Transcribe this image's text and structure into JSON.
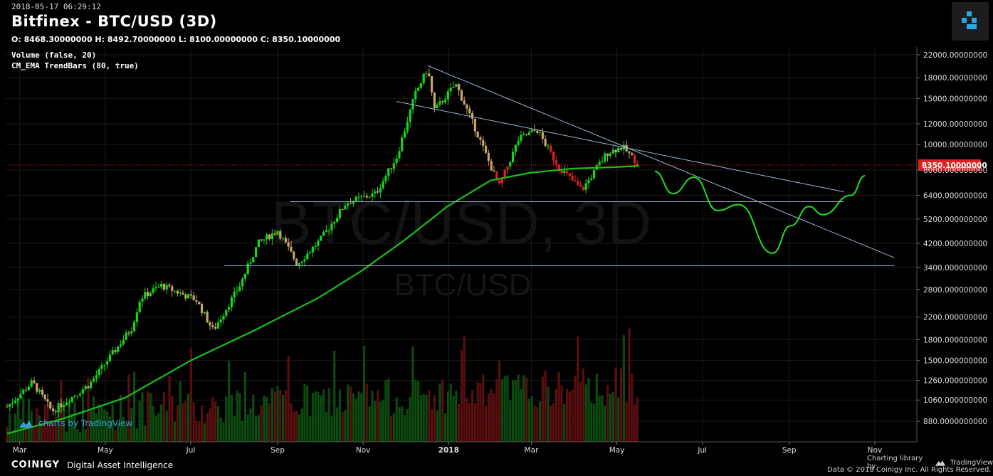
{
  "header": {
    "timestamp": "2018-05-17 06:29:12",
    "title": "Bitfinex - BTC/USD (3D)",
    "ohlc": "O: 8468.30000000 H: 8492.70000000 L: 8100.00000000 C: 8350.10000000",
    "indicators": [
      "Volume (false, 20)",
      "CM_EMA TrendBars (80, true)"
    ]
  },
  "watermark": {
    "main": "BTC/USD, 3D",
    "sub": "BTC/USD",
    "tv_text": "charts by TradingView"
  },
  "footer": {
    "brand": "COINIGY",
    "tagline": "Digital Asset Intelligence",
    "charting_lib": "Charting library by",
    "tv_name": "TradingView",
    "copyright": "Data © 2018 Coinigy Inc. All Rights Reserved."
  },
  "colors": {
    "up": "#18d61a",
    "down": "#c7a469",
    "red": "#e02020",
    "ema": "#18c018",
    "trend": "#9fb6d6",
    "volume_up": "#0c4a10",
    "volume_down": "#5a0e10"
  },
  "chart_data": {
    "type": "candlestick",
    "y_scale": "log",
    "y_ticks": [
      "22000.00000000",
      "18000.00000000",
      "15000.00000000",
      "12000.00000000",
      "10000.00000000",
      "8000.000000000",
      "6400.000000000",
      "5200.000000000",
      "4200.000000000",
      "3400.000000000",
      "2800.000000000",
      "2200.000000000",
      "1800.000000000",
      "1500.000000000",
      "1260.000000000",
      "1060.000000000",
      "880.0000000000"
    ],
    "y_tick_values": [
      22000,
      18000,
      15000,
      12000,
      10000,
      8000,
      6400,
      5200,
      4200,
      3400,
      2800,
      2200,
      1800,
      1500,
      1260,
      1060,
      880
    ],
    "x_labels": [
      "Mar",
      "May",
      "Jul",
      "Sep",
      "Nov",
      "2018",
      "Mar",
      "May",
      "Jul",
      "Sep",
      "Nov"
    ],
    "x_label_dates": [
      "2017-03-01",
      "2017-05-01",
      "2017-07-01",
      "2017-09-01",
      "2017-11-01",
      "2018-01-01",
      "2018-03-01",
      "2018-05-01",
      "2018-07-01",
      "2018-09-01",
      "2018-11-01"
    ],
    "last_price": "8350.10000000",
    "last_price_value": 8350.1,
    "price_path": [
      [
        "2017-02-20",
        1000
      ],
      [
        "2017-03-10",
        1240
      ],
      [
        "2017-03-24",
        960
      ],
      [
        "2017-04-20",
        1220
      ],
      [
        "2017-05-20",
        2000
      ],
      [
        "2017-05-26",
        2600
      ],
      [
        "2017-06-10",
        2900
      ],
      [
        "2017-07-05",
        2550
      ],
      [
        "2017-07-17",
        1950
      ],
      [
        "2017-08-05",
        2900
      ],
      [
        "2017-08-18",
        4200
      ],
      [
        "2017-09-01",
        4700
      ],
      [
        "2017-09-15",
        3500
      ],
      [
        "2017-10-01",
        4300
      ],
      [
        "2017-10-20",
        6000
      ],
      [
        "2017-11-10",
        6500
      ],
      [
        "2017-11-25",
        9000
      ],
      [
        "2017-12-08",
        15500
      ],
      [
        "2017-12-17",
        19500
      ],
      [
        "2017-12-22",
        13500
      ],
      [
        "2018-01-06",
        17000
      ],
      [
        "2018-01-20",
        11500
      ],
      [
        "2018-02-06",
        6900
      ],
      [
        "2018-02-20",
        10500
      ],
      [
        "2018-03-05",
        11400
      ],
      [
        "2018-03-20",
        8300
      ],
      [
        "2018-04-06",
        6700
      ],
      [
        "2018-04-24",
        9300
      ],
      [
        "2018-05-05",
        9800
      ],
      [
        "2018-05-17",
        8350
      ]
    ],
    "ema_path": [
      [
        "2017-02-20",
        790
      ],
      [
        "2017-04-01",
        900
      ],
      [
        "2017-05-15",
        1080
      ],
      [
        "2017-07-01",
        1500
      ],
      [
        "2017-08-15",
        1950
      ],
      [
        "2017-09-30",
        2600
      ],
      [
        "2017-10-31",
        3300
      ],
      [
        "2017-11-30",
        4300
      ],
      [
        "2017-12-31",
        5800
      ],
      [
        "2018-01-31",
        7300
      ],
      [
        "2018-02-28",
        7800
      ],
      [
        "2018-03-31",
        8100
      ],
      [
        "2018-04-30",
        8200
      ],
      [
        "2018-05-17",
        8300
      ]
    ],
    "trend_lines": [
      [
        [
          "2017-12-17",
          20000
        ],
        [
          "2018-11-15",
          3700
        ]
      ],
      [
        [
          "2017-11-25",
          14600
        ],
        [
          "2018-10-10",
          6600
        ]
      ],
      [
        [
          "2017-09-10",
          6050
        ],
        [
          "2018-10-10",
          6050
        ]
      ],
      [
        [
          "2017-07-25",
          3450
        ],
        [
          "2018-11-15",
          3450
        ]
      ]
    ],
    "projection_path": [
      [
        "2018-05-28",
        7900
      ],
      [
        "2018-06-10",
        6500
      ],
      [
        "2018-06-25",
        7500
      ],
      [
        "2018-07-12",
        5600
      ],
      [
        "2018-07-27",
        5900
      ],
      [
        "2018-08-20",
        3850
      ],
      [
        "2018-09-02",
        4900
      ],
      [
        "2018-09-15",
        5800
      ],
      [
        "2018-09-25",
        5400
      ],
      [
        "2018-10-15",
        6400
      ],
      [
        "2018-10-25",
        7600
      ]
    ]
  }
}
